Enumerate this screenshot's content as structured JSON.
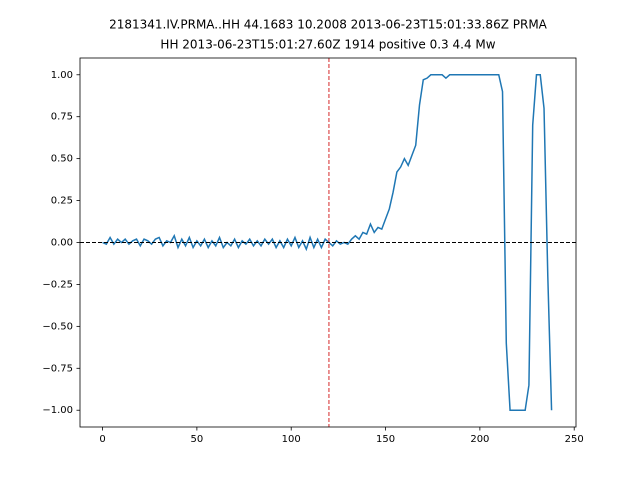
{
  "chart_data": {
    "type": "line",
    "title": [
      "2181341.IV.PRMA..HH 44.1683 10.2008 2013-06-23T15:01:33.86Z PRMA",
      "HH 2013-06-23T15:01:27.60Z 1914 positive 0.3 4.4 Mw"
    ],
    "x": [
      0,
      2,
      4,
      6,
      8,
      10,
      12,
      14,
      16,
      18,
      20,
      22,
      24,
      26,
      28,
      30,
      32,
      34,
      36,
      38,
      40,
      42,
      44,
      46,
      48,
      50,
      52,
      54,
      56,
      58,
      60,
      62,
      64,
      66,
      68,
      70,
      72,
      74,
      76,
      78,
      80,
      82,
      84,
      86,
      88,
      90,
      92,
      94,
      96,
      98,
      100,
      102,
      104,
      106,
      108,
      110,
      112,
      114,
      116,
      118,
      120,
      122,
      124,
      126,
      128,
      130,
      132,
      134,
      136,
      138,
      140,
      142,
      144,
      146,
      148,
      150,
      152,
      154,
      156,
      158,
      160,
      162,
      164,
      166,
      168,
      170,
      172,
      174,
      176,
      178,
      180,
      182,
      184,
      186,
      188,
      190,
      192,
      194,
      196,
      198,
      200,
      202,
      204,
      206,
      208,
      210,
      212,
      214,
      216,
      218,
      220,
      222,
      224,
      226,
      228,
      230,
      232,
      234,
      236,
      238
    ],
    "series": [
      {
        "color": "#1f77b4",
        "values": [
          0,
          -0.01,
          0.03,
          -0.01,
          0.02,
          0,
          0.02,
          -0.01,
          0.01,
          0.02,
          -0.02,
          0.02,
          0.01,
          -0.01,
          0.02,
          0.03,
          -0.02,
          0.01,
          0,
          0.04,
          -0.03,
          0.02,
          -0.02,
          0.03,
          -0.03,
          0.01,
          -0.02,
          0.02,
          -0.03,
          0.01,
          -0.02,
          0.03,
          -0.03,
          0,
          -0.02,
          0.02,
          -0.03,
          0.01,
          -0.01,
          0.02,
          -0.02,
          0.01,
          -0.02,
          0.02,
          -0.01,
          0.02,
          -0.03,
          0.01,
          -0.03,
          0.02,
          -0.02,
          0.03,
          -0.03,
          0.01,
          -0.04,
          0.03,
          -0.03,
          0.02,
          -0.03,
          0.02,
          0,
          -0.02,
          0.01,
          -0.01,
          0,
          -0.01,
          0.02,
          0.04,
          0.02,
          0.06,
          0.05,
          0.11,
          0.06,
          0.09,
          0.08,
          0.14,
          0.2,
          0.3,
          0.42,
          0.45,
          0.5,
          0.46,
          0.52,
          0.58,
          0.82,
          0.97,
          0.98,
          1,
          1,
          1,
          1,
          0.98,
          1,
          1,
          1,
          1,
          1,
          1,
          1,
          1,
          1,
          1,
          1,
          1,
          1,
          1,
          0.9,
          -0.6,
          -1,
          -1,
          -1,
          -1,
          -1,
          -0.85,
          0.7,
          1,
          1,
          0.8,
          -0.2,
          -1
        ]
      }
    ],
    "vline": 120,
    "vline_color": "#d62728",
    "hline": 0,
    "hline_color": "#000000",
    "xlim": [
      -11.95,
      250.95
    ],
    "xticks": [
      0,
      50,
      100,
      150,
      200,
      250
    ],
    "ylim": [
      -1.1,
      1.1
    ],
    "yticks": [
      {
        "value": -1,
        "label": "−1.00"
      },
      {
        "value": -0.75,
        "label": "−0.75"
      },
      {
        "value": -0.5,
        "label": "−0.50"
      },
      {
        "value": -0.25,
        "label": "−0.25"
      },
      {
        "value": 0,
        "label": "0.00"
      },
      {
        "value": 0.25,
        "label": "0.25"
      },
      {
        "value": 0.5,
        "label": "0.50"
      },
      {
        "value": 0.75,
        "label": "0.75"
      },
      {
        "value": 1,
        "label": "1.00"
      }
    ]
  }
}
